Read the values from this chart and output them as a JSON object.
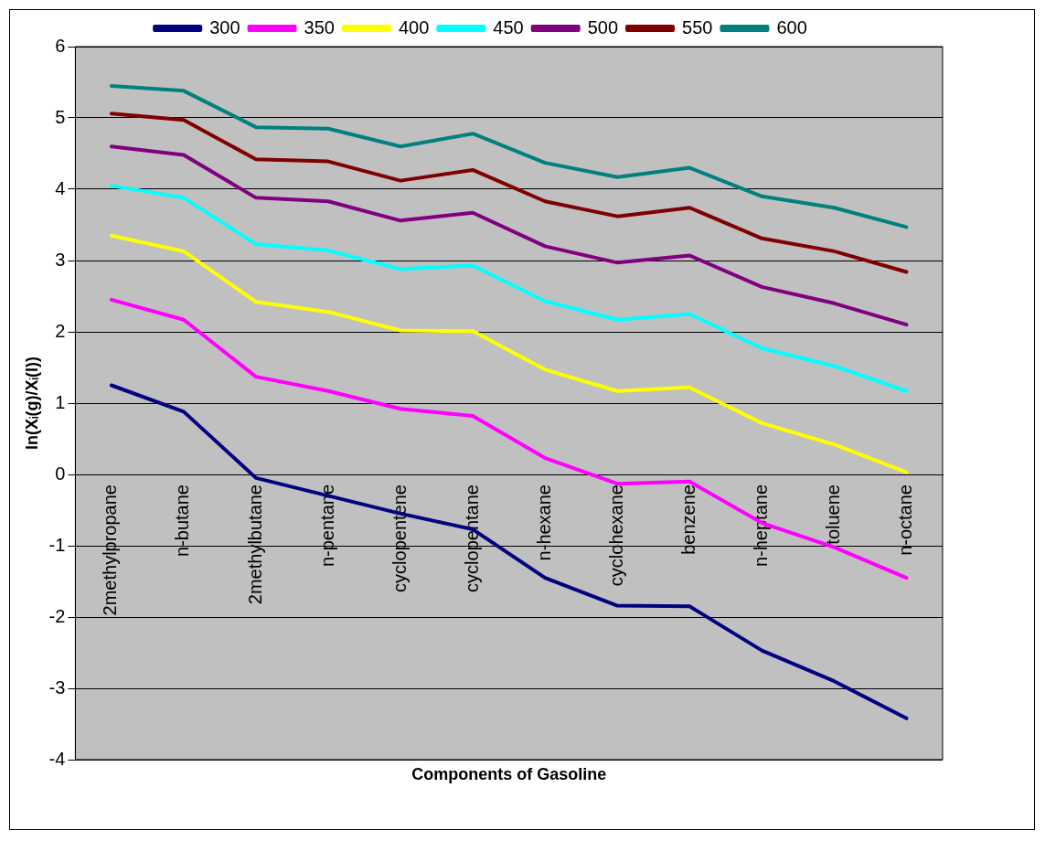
{
  "chart_data": {
    "type": "line",
    "xlabel": "Components of Gasoline",
    "ylabel": "ln(Xᵢ(g)/Xᵢ(l))",
    "categories": [
      "2methylpropane",
      "n-butane",
      "2methylbutane",
      "n-pentane",
      "cyclopentene",
      "cyclopentane",
      "n-hexane",
      "cyclohexane",
      "benzene",
      "n-heptane",
      "toluene",
      "n-octane"
    ],
    "ylim": [
      -4,
      6
    ],
    "yticks": [
      -4,
      -3,
      -2,
      -1,
      0,
      1,
      2,
      3,
      4,
      5,
      6
    ],
    "grid": "y",
    "legend": "top",
    "marker": "none",
    "series": [
      {
        "name": "300",
        "color": "#000080",
        "values": [
          1.25,
          0.88,
          -0.05,
          -0.3,
          -0.55,
          -0.77,
          -1.45,
          -1.84,
          -1.85,
          -2.47,
          -2.9,
          -3.42
        ]
      },
      {
        "name": "350",
        "color": "#ff00ff",
        "values": [
          2.45,
          2.17,
          1.37,
          1.17,
          0.92,
          0.82,
          0.23,
          -0.13,
          -0.1,
          -0.68,
          -1.02,
          -1.45
        ]
      },
      {
        "name": "400",
        "color": "#ffff00",
        "values": [
          3.35,
          3.13,
          2.42,
          2.28,
          2.02,
          2.01,
          1.47,
          1.17,
          1.22,
          0.72,
          0.42,
          0.03
        ]
      },
      {
        "name": "450",
        "color": "#00ffff",
        "values": [
          4.05,
          3.88,
          3.23,
          3.14,
          2.88,
          2.93,
          2.43,
          2.17,
          2.25,
          1.77,
          1.52,
          1.17
        ]
      },
      {
        "name": "500",
        "color": "#800080",
        "values": [
          4.6,
          4.48,
          3.88,
          3.83,
          3.56,
          3.67,
          3.2,
          2.97,
          3.07,
          2.63,
          2.4,
          2.1
        ]
      },
      {
        "name": "550",
        "color": "#800000",
        "values": [
          5.06,
          4.97,
          4.42,
          4.39,
          4.12,
          4.27,
          3.83,
          3.62,
          3.74,
          3.31,
          3.13,
          2.84
        ]
      },
      {
        "name": "600",
        "color": "#008080",
        "values": [
          5.45,
          5.38,
          4.87,
          4.85,
          4.6,
          4.78,
          4.37,
          4.17,
          4.3,
          3.9,
          3.74,
          3.47
        ]
      }
    ]
  }
}
